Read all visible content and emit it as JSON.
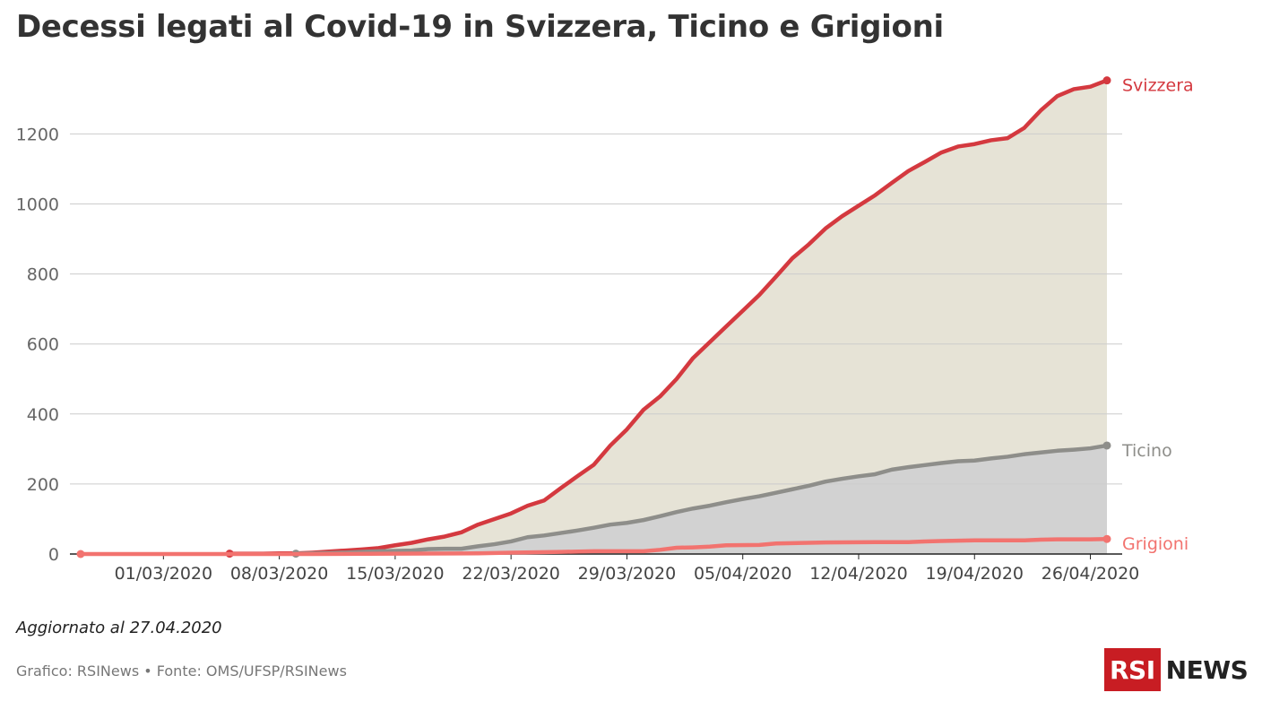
{
  "title": "Decessi legati al Covid-19 in Svizzera, Ticino e Grigioni",
  "updated": "Aggiornato al 27.04.2020",
  "source": "Grafico: RSINews • Fonte: OMS/UFSP/RSINews",
  "logo": {
    "box": "RSI",
    "text": "NEWS"
  },
  "chart_data": {
    "type": "line",
    "title": "Decessi legati al Covid-19 in Svizzera, Ticino e Grigioni",
    "xlabel": "",
    "ylabel": "",
    "xlim": [
      "2020-02-25",
      "2020-04-27"
    ],
    "ylim": [
      0,
      1380
    ],
    "yticks": [
      0,
      200,
      400,
      600,
      800,
      1000,
      1200
    ],
    "xticks": [
      "01/03/2020",
      "08/03/2020",
      "15/03/2020",
      "22/03/2020",
      "29/03/2020",
      "05/04/2020",
      "12/04/2020",
      "19/04/2020",
      "26/04/2020"
    ],
    "grid": true,
    "legend": "labels at line ends",
    "series": [
      {
        "name": "Svizzera",
        "color": "#d4393f",
        "fill": "#e6e3d6",
        "x": [
          "2020-03-05",
          "2020-03-06",
          "2020-03-07",
          "2020-03-08",
          "2020-03-09",
          "2020-03-10",
          "2020-03-11",
          "2020-03-12",
          "2020-03-13",
          "2020-03-14",
          "2020-03-15",
          "2020-03-16",
          "2020-03-17",
          "2020-03-18",
          "2020-03-19",
          "2020-03-20",
          "2020-03-21",
          "2020-03-22",
          "2020-03-23",
          "2020-03-24",
          "2020-03-25",
          "2020-03-26",
          "2020-03-27",
          "2020-03-28",
          "2020-03-29",
          "2020-03-30",
          "2020-03-31",
          "2020-04-01",
          "2020-04-02",
          "2020-04-03",
          "2020-04-04",
          "2020-04-05",
          "2020-04-06",
          "2020-04-07",
          "2020-04-08",
          "2020-04-09",
          "2020-04-10",
          "2020-04-11",
          "2020-04-12",
          "2020-04-13",
          "2020-04-14",
          "2020-04-15",
          "2020-04-16",
          "2020-04-17",
          "2020-04-18",
          "2020-04-19",
          "2020-04-20",
          "2020-04-21",
          "2020-04-22",
          "2020-04-23",
          "2020-04-24",
          "2020-04-25",
          "2020-04-26",
          "2020-04-27"
        ],
        "values": [
          1,
          1,
          1,
          2,
          2,
          4,
          7,
          10,
          13,
          17,
          25,
          32,
          42,
          50,
          62,
          84,
          100,
          116,
          138,
          153,
          188,
          222,
          255,
          310,
          356,
          412,
          450,
          500,
          560,
          605,
          650,
          695,
          740,
          792,
          845,
          885,
          930,
          965,
          995,
          1025,
          1060,
          1094,
          1120,
          1147,
          1164,
          1171,
          1182,
          1188,
          1217,
          1267,
          1308,
          1328,
          1335,
          1353
        ]
      },
      {
        "name": "Ticino",
        "color": "#8e8e8a",
        "fill": "#d2d2d2",
        "x": [
          "2020-03-09",
          "2020-03-10",
          "2020-03-11",
          "2020-03-12",
          "2020-03-13",
          "2020-03-14",
          "2020-03-15",
          "2020-03-16",
          "2020-03-17",
          "2020-03-18",
          "2020-03-19",
          "2020-03-20",
          "2020-03-21",
          "2020-03-22",
          "2020-03-23",
          "2020-03-24",
          "2020-03-25",
          "2020-03-26",
          "2020-03-27",
          "2020-03-28",
          "2020-03-29",
          "2020-03-30",
          "2020-03-31",
          "2020-04-01",
          "2020-04-02",
          "2020-04-03",
          "2020-04-04",
          "2020-04-05",
          "2020-04-06",
          "2020-04-07",
          "2020-04-08",
          "2020-04-09",
          "2020-04-10",
          "2020-04-11",
          "2020-04-12",
          "2020-04-13",
          "2020-04-14",
          "2020-04-15",
          "2020-04-16",
          "2020-04-17",
          "2020-04-18",
          "2020-04-19",
          "2020-04-20",
          "2020-04-21",
          "2020-04-22",
          "2020-04-23",
          "2020-04-24",
          "2020-04-25",
          "2020-04-26",
          "2020-04-27"
        ],
        "values": [
          1,
          2,
          3,
          4,
          6,
          8,
          9,
          10,
          14,
          15,
          15,
          22,
          28,
          36,
          48,
          53,
          60,
          67,
          75,
          84,
          89,
          97,
          108,
          120,
          130,
          138,
          148,
          157,
          165,
          175,
          185,
          195,
          207,
          215,
          222,
          228,
          241,
          248,
          254,
          260,
          265,
          267,
          273,
          278,
          285,
          290,
          295,
          298,
          302,
          310
        ]
      },
      {
        "name": "Grigioni",
        "color": "#f2736f",
        "fill": "none",
        "x": [
          "2020-02-25",
          "2020-03-05",
          "2020-03-10",
          "2020-03-15",
          "2020-03-20",
          "2020-03-22",
          "2020-03-25",
          "2020-03-27",
          "2020-03-28",
          "2020-03-30",
          "2020-03-31",
          "2020-04-01",
          "2020-04-02",
          "2020-04-03",
          "2020-04-04",
          "2020-04-06",
          "2020-04-07",
          "2020-04-10",
          "2020-04-13",
          "2020-04-15",
          "2020-04-16",
          "2020-04-17",
          "2020-04-18",
          "2020-04-19",
          "2020-04-20",
          "2020-04-21",
          "2020-04-22",
          "2020-04-23",
          "2020-04-24",
          "2020-04-25",
          "2020-04-26",
          "2020-04-27"
        ],
        "values": [
          0,
          0,
          0,
          1,
          2,
          4,
          6,
          8,
          8,
          8,
          12,
          18,
          19,
          21,
          25,
          26,
          30,
          33,
          34,
          34,
          36,
          37,
          38,
          39,
          39,
          39,
          39,
          41,
          42,
          42,
          42,
          43
        ]
      }
    ]
  }
}
